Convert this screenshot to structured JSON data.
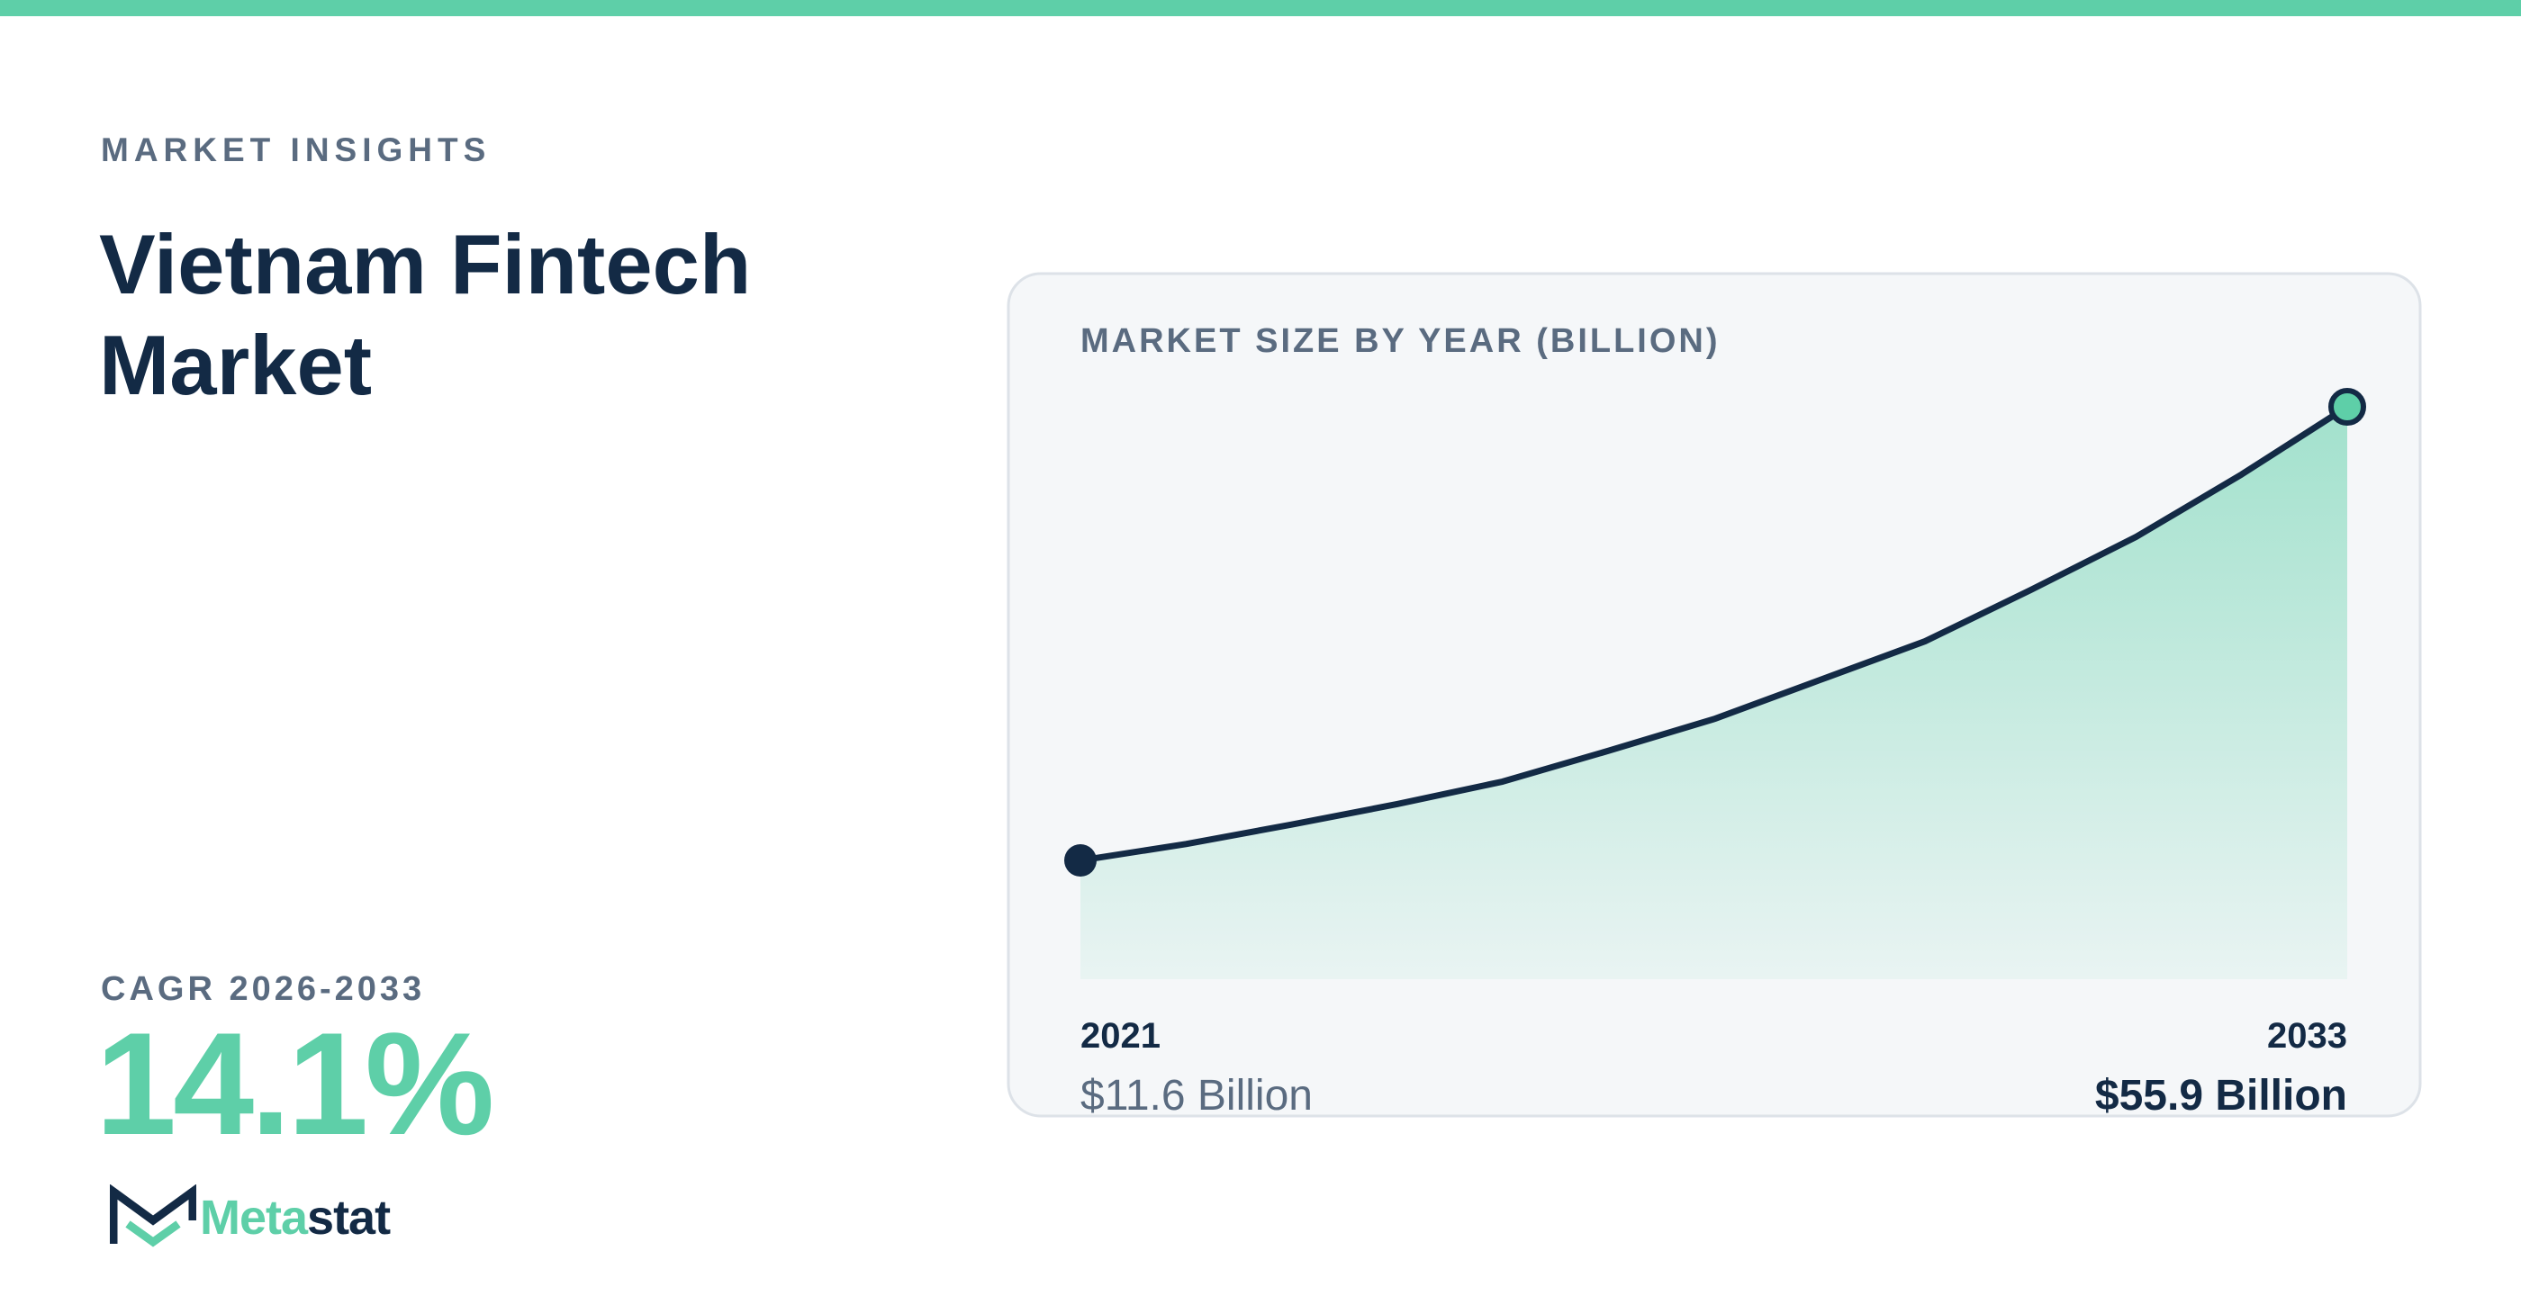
{
  "eyebrow": "MARKET INSIGHTS",
  "title": "Vietnam Fintech Market",
  "cagr_label": "CAGR 2026-2033",
  "cagr_value": "14.1%",
  "logo": {
    "first": "Meta",
    "second": "stat"
  },
  "chart_data": {
    "type": "line",
    "title": "MARKET SIZE BY YEAR (BILLION)",
    "categories": [
      "2021",
      null,
      null,
      null,
      null,
      null,
      null,
      null,
      null,
      null,
      null,
      null,
      "2033"
    ],
    "values": [
      11.6,
      13.2,
      15.1,
      17.1,
      19.3,
      22.3,
      25.4,
      29.2,
      33.0,
      38.0,
      43.2,
      49.3,
      55.9
    ],
    "value_labels": [
      "$11.6 Billion",
      null,
      null,
      null,
      null,
      null,
      null,
      null,
      null,
      null,
      null,
      null,
      "$55.9 Billion"
    ],
    "ylim": [
      0,
      55.9
    ],
    "color": "#132a45",
    "area_color": "#5ecfa8"
  }
}
